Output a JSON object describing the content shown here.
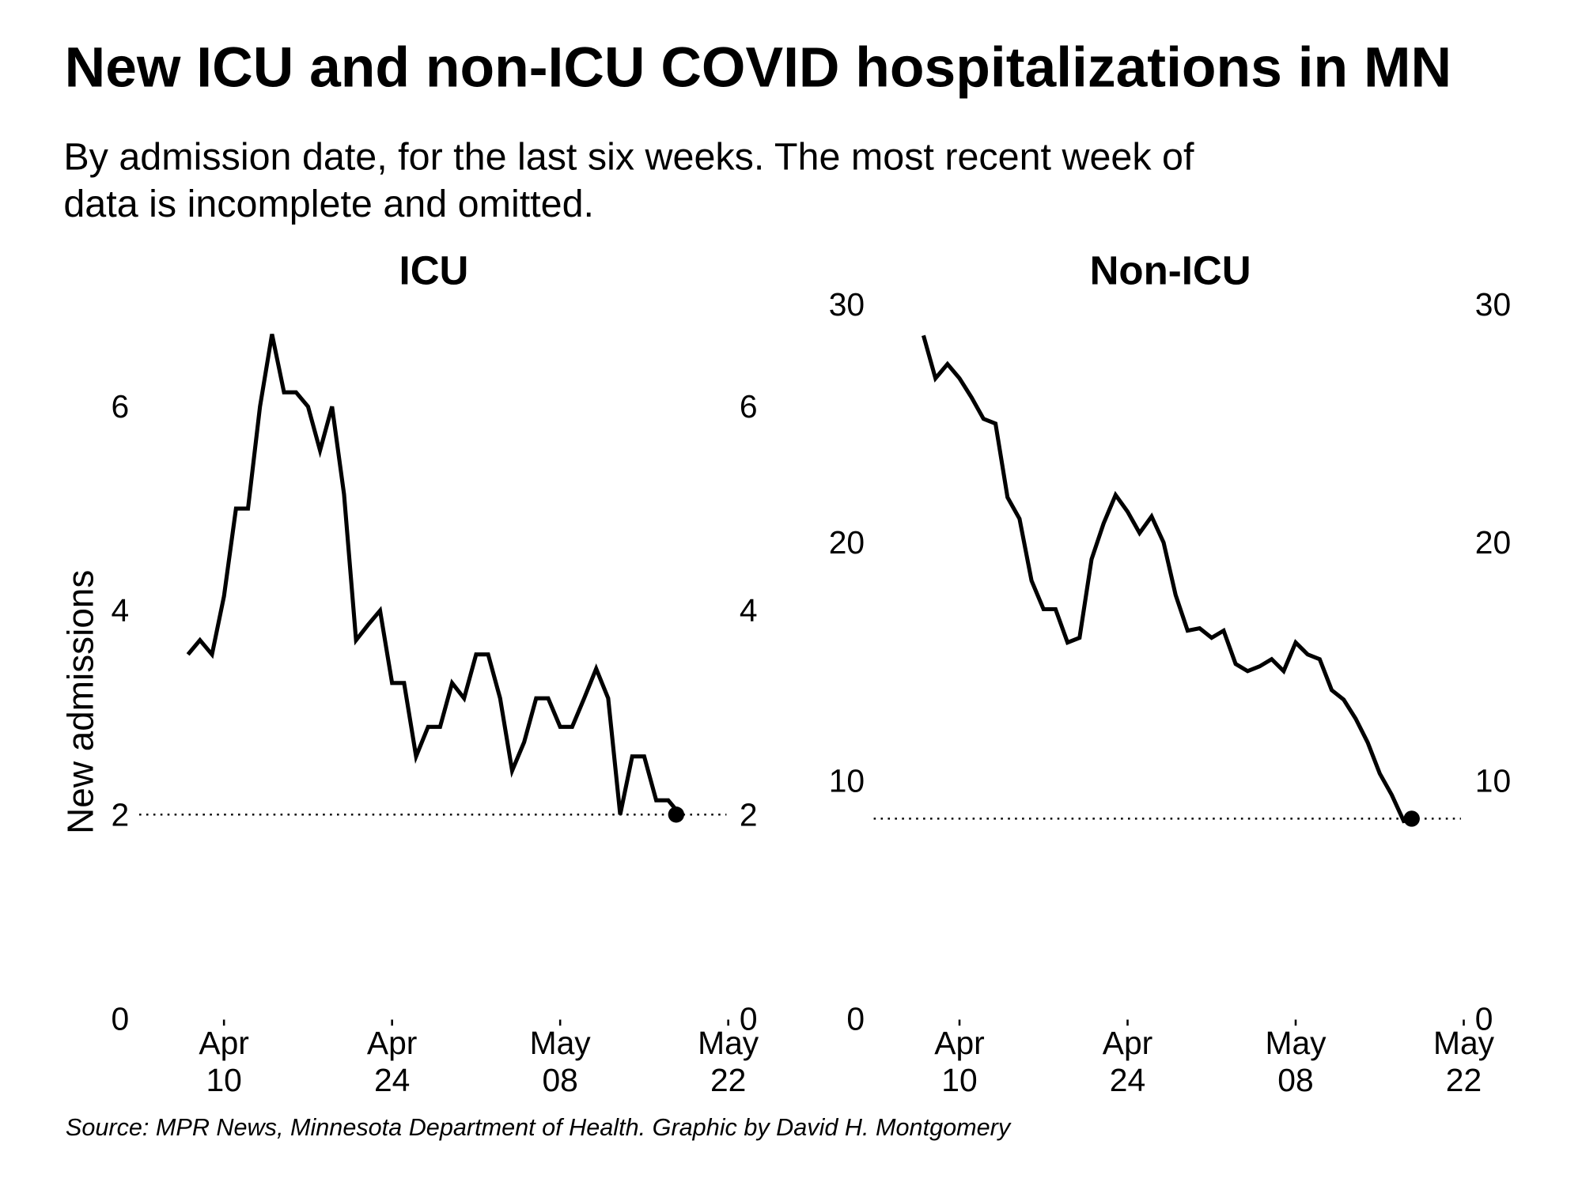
{
  "title": "New ICU and non-ICU COVID hospitalizations in MN",
  "subtitle": [
    "By admission date, for the last six weeks. The most recent week of",
    "data is incomplete and omitted."
  ],
  "source": "Source: MPR News, Minnesota Department of Health. Graphic by David H. Montgomery",
  "chart_data": [
    {
      "type": "line",
      "title": "ICU",
      "y_label": "New admissions",
      "color": "#000000",
      "highlight_last": true,
      "x": [
        "Apr 07",
        "Apr 08",
        "Apr 09",
        "Apr 10",
        "Apr 11",
        "Apr 12",
        "Apr 13",
        "Apr 14",
        "Apr 15",
        "Apr 16",
        "Apr 17",
        "Apr 18",
        "Apr 19",
        "Apr 20",
        "Apr 21",
        "Apr 22",
        "Apr 23",
        "Apr 24",
        "Apr 25",
        "Apr 26",
        "Apr 27",
        "Apr 28",
        "Apr 29",
        "Apr 30",
        "May 01",
        "May 02",
        "May 03",
        "May 04",
        "May 05",
        "May 06",
        "May 07",
        "May 08",
        "May 09",
        "May 10",
        "May 11",
        "May 12",
        "May 13",
        "May 14",
        "May 15",
        "May 16",
        "May 17",
        "May 18"
      ],
      "values": [
        3.57,
        3.71,
        3.57,
        4.14,
        5.0,
        5.0,
        6.0,
        6.71,
        6.14,
        6.14,
        6.0,
        5.57,
        6.0,
        5.14,
        3.71,
        3.86,
        4.0,
        3.29,
        3.29,
        2.57,
        2.86,
        2.86,
        3.29,
        3.14,
        3.57,
        3.57,
        3.14,
        2.43,
        2.71,
        3.14,
        3.14,
        2.86,
        2.86,
        3.14,
        3.43,
        3.14,
        2.0,
        2.57,
        2.57,
        2.14,
        2.14,
        2.0
      ],
      "xticks": [
        {
          "value": "Apr 10",
          "label": [
            "Apr",
            "10"
          ]
        },
        {
          "value": "Apr 24",
          "label": [
            "Apr",
            "24"
          ]
        },
        {
          "value": "May 08",
          "label": [
            "May",
            "08"
          ]
        },
        {
          "value": "May 22",
          "label": [
            "May",
            "22"
          ]
        }
      ],
      "ylim": [
        0,
        7
      ],
      "yticks": [
        0,
        2,
        4,
        6
      ]
    },
    {
      "type": "line",
      "title": "Non-ICU",
      "color": "#000000",
      "highlight_last": true,
      "x": [
        "Apr 07",
        "Apr 08",
        "Apr 09",
        "Apr 10",
        "Apr 11",
        "Apr 12",
        "Apr 13",
        "Apr 14",
        "Apr 15",
        "Apr 16",
        "Apr 17",
        "Apr 18",
        "Apr 19",
        "Apr 20",
        "Apr 21",
        "Apr 22",
        "Apr 23",
        "Apr 24",
        "Apr 25",
        "Apr 26",
        "Apr 27",
        "Apr 28",
        "Apr 29",
        "Apr 30",
        "May 01",
        "May 02",
        "May 03",
        "May 04",
        "May 05",
        "May 06",
        "May 07",
        "May 08",
        "May 09",
        "May 10",
        "May 11",
        "May 12",
        "May 13",
        "May 14",
        "May 15",
        "May 16",
        "May 17",
        "May 18"
      ],
      "values": [
        28.7,
        26.9,
        27.5,
        26.9,
        26.1,
        25.2,
        25.0,
        21.9,
        21.0,
        18.4,
        17.2,
        17.2,
        15.8,
        16.0,
        19.3,
        20.8,
        22.0,
        21.3,
        20.4,
        21.1,
        20.0,
        17.8,
        16.3,
        16.4,
        16.0,
        16.3,
        14.9,
        14.6,
        14.8,
        15.1,
        14.6,
        15.8,
        15.3,
        15.1,
        13.8,
        13.4,
        12.6,
        11.6,
        10.3,
        9.4,
        8.3,
        8.4
      ],
      "xticks": [
        {
          "value": "Apr 10",
          "label": [
            "Apr",
            "10"
          ]
        },
        {
          "value": "Apr 24",
          "label": [
            "Apr",
            "24"
          ]
        },
        {
          "value": "May 08",
          "label": [
            "May",
            "08"
          ]
        },
        {
          "value": "May 22",
          "label": [
            "May",
            "22"
          ]
        }
      ],
      "ylim": [
        0,
        30
      ],
      "yticks": [
        0,
        10,
        20,
        30
      ]
    }
  ]
}
